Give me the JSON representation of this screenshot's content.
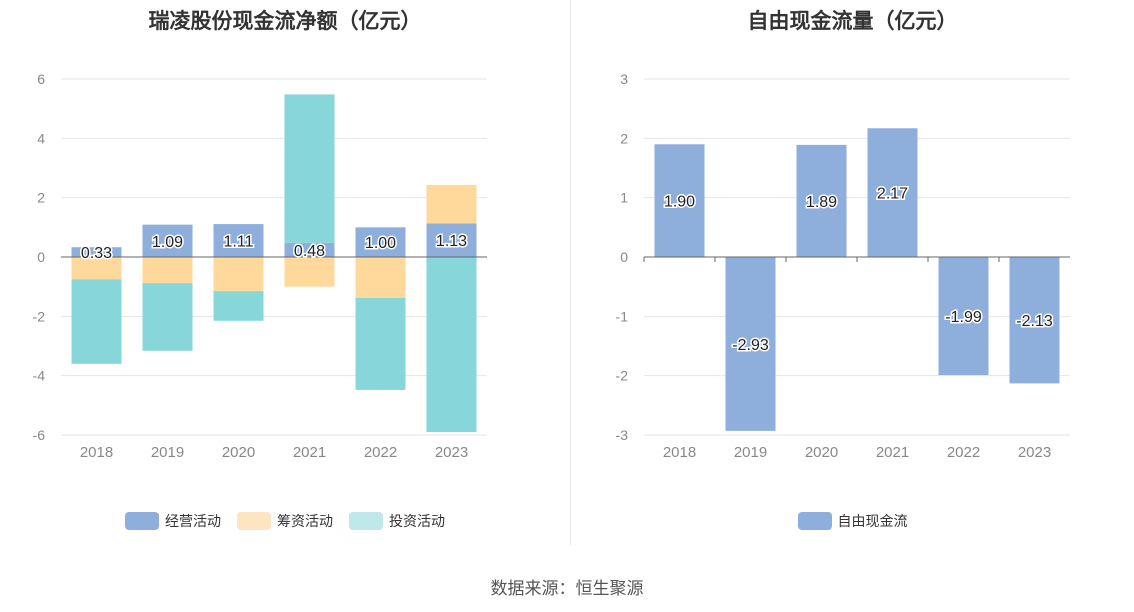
{
  "left_chart": {
    "title": "瑞凌股份现金流净额（亿元）",
    "legend": [
      {
        "label": "经营活动",
        "color": "#8eaedb"
      },
      {
        "label": "筹资活动",
        "color": "#fde5c2"
      },
      {
        "label": "投资活动",
        "color": "#bfe8ea"
      }
    ]
  },
  "right_chart": {
    "title": "自由现金流量（亿元）",
    "legend": [
      {
        "label": "自由现金流",
        "color": "#8eaedb"
      }
    ]
  },
  "source": "数据来源：恒生聚源",
  "chart_data": [
    {
      "type": "bar",
      "stacked": true,
      "title": "瑞凌股份现金流净额（亿元）",
      "categories": [
        "2018",
        "2019",
        "2020",
        "2021",
        "2022",
        "2023"
      ],
      "ylim": [
        -6,
        6
      ],
      "yticks": [
        6,
        4,
        2,
        0,
        -2,
        -4,
        -6
      ],
      "grid": true,
      "legend_position": "bottom",
      "series": [
        {
          "name": "经营活动",
          "color": "#8eaedb",
          "values": [
            0.33,
            1.09,
            1.11,
            0.48,
            1.0,
            1.13
          ],
          "labels": [
            "0.33",
            "1.09",
            "1.11",
            "0.48",
            "1.00",
            "1.13"
          ]
        },
        {
          "name": "筹资活动",
          "color": "#fed99b",
          "values": [
            -0.75,
            -0.88,
            -1.15,
            -1.0,
            -1.38,
            1.3
          ]
        },
        {
          "name": "投资活动",
          "color": "#87d6da",
          "values": [
            -2.85,
            -2.28,
            -1.0,
            5.0,
            -3.1,
            -5.9
          ]
        }
      ]
    },
    {
      "type": "bar",
      "title": "自由现金流量（亿元）",
      "categories": [
        "2018",
        "2019",
        "2020",
        "2021",
        "2022",
        "2023"
      ],
      "ylim": [
        -3,
        3
      ],
      "yticks": [
        3,
        2,
        1,
        0,
        -1,
        -2,
        -3
      ],
      "grid": true,
      "legend_position": "bottom",
      "series": [
        {
          "name": "自由现金流",
          "color": "#8eaedb",
          "values": [
            1.9,
            -2.93,
            1.89,
            2.17,
            -1.99,
            -2.13
          ],
          "labels": [
            "1.90",
            "-2.93",
            "1.89",
            "2.17",
            "-1.99",
            "-2.13"
          ]
        }
      ]
    }
  ]
}
